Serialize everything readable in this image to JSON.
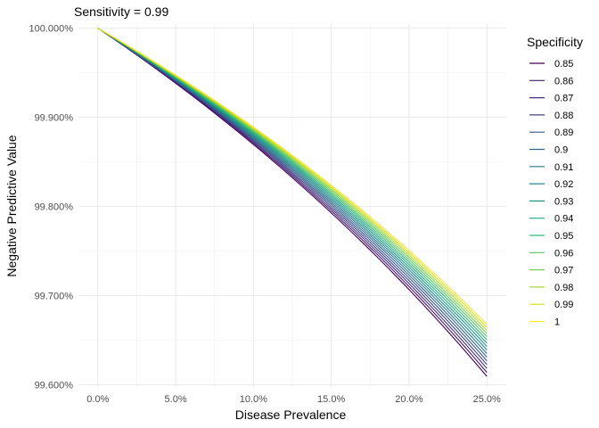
{
  "chart_data": {
    "type": "line",
    "title": "Sensitivity = 0.99",
    "xlabel": "Disease Prevalence",
    "ylabel": "Negative Predictive Value",
    "ylabel_color": "#0000ff",
    "xlim": [
      -0.0125,
      0.2625
    ],
    "ylim": [
      99.5965,
      100.0045
    ],
    "x_ticks": [
      0,
      0.05,
      0.1,
      0.15,
      0.2,
      0.25
    ],
    "x_tick_labels": [
      "0.0%",
      "5.0%",
      "10.0%",
      "15.0%",
      "20.0%",
      "25.0%"
    ],
    "y_ticks": [
      99.6,
      99.7,
      99.8,
      99.9,
      100.0
    ],
    "y_tick_labels": [
      "99.600%",
      "99.700%",
      "99.800%",
      "99.900%",
      "100.000%"
    ],
    "grid": true,
    "legend": {
      "title": "Specificity",
      "placement": "right"
    },
    "sensitivity": 0.99,
    "x": [
      0,
      0.025,
      0.05,
      0.075,
      0.1,
      0.125,
      0.15,
      0.175,
      0.2,
      0.225,
      0.25
    ],
    "series": [
      {
        "name": "0.85",
        "color": "#440154"
      },
      {
        "name": "0.86",
        "color": "#481a6c"
      },
      {
        "name": "0.87",
        "color": "#472f7d"
      },
      {
        "name": "0.88",
        "color": "#414487"
      },
      {
        "name": "0.89",
        "color": "#39568c"
      },
      {
        "name": "0.9",
        "color": "#31688e"
      },
      {
        "name": "0.91",
        "color": "#2a788e"
      },
      {
        "name": "0.92",
        "color": "#23888e"
      },
      {
        "name": "0.93",
        "color": "#1f988b"
      },
      {
        "name": "0.94",
        "color": "#22a884"
      },
      {
        "name": "0.95",
        "color": "#35b779"
      },
      {
        "name": "0.96",
        "color": "#54c568"
      },
      {
        "name": "0.97",
        "color": "#7ad151"
      },
      {
        "name": "0.98",
        "color": "#a5db36"
      },
      {
        "name": "0.99",
        "color": "#d2e21b"
      },
      {
        "name": "1",
        "color": "#fde725"
      }
    ]
  }
}
